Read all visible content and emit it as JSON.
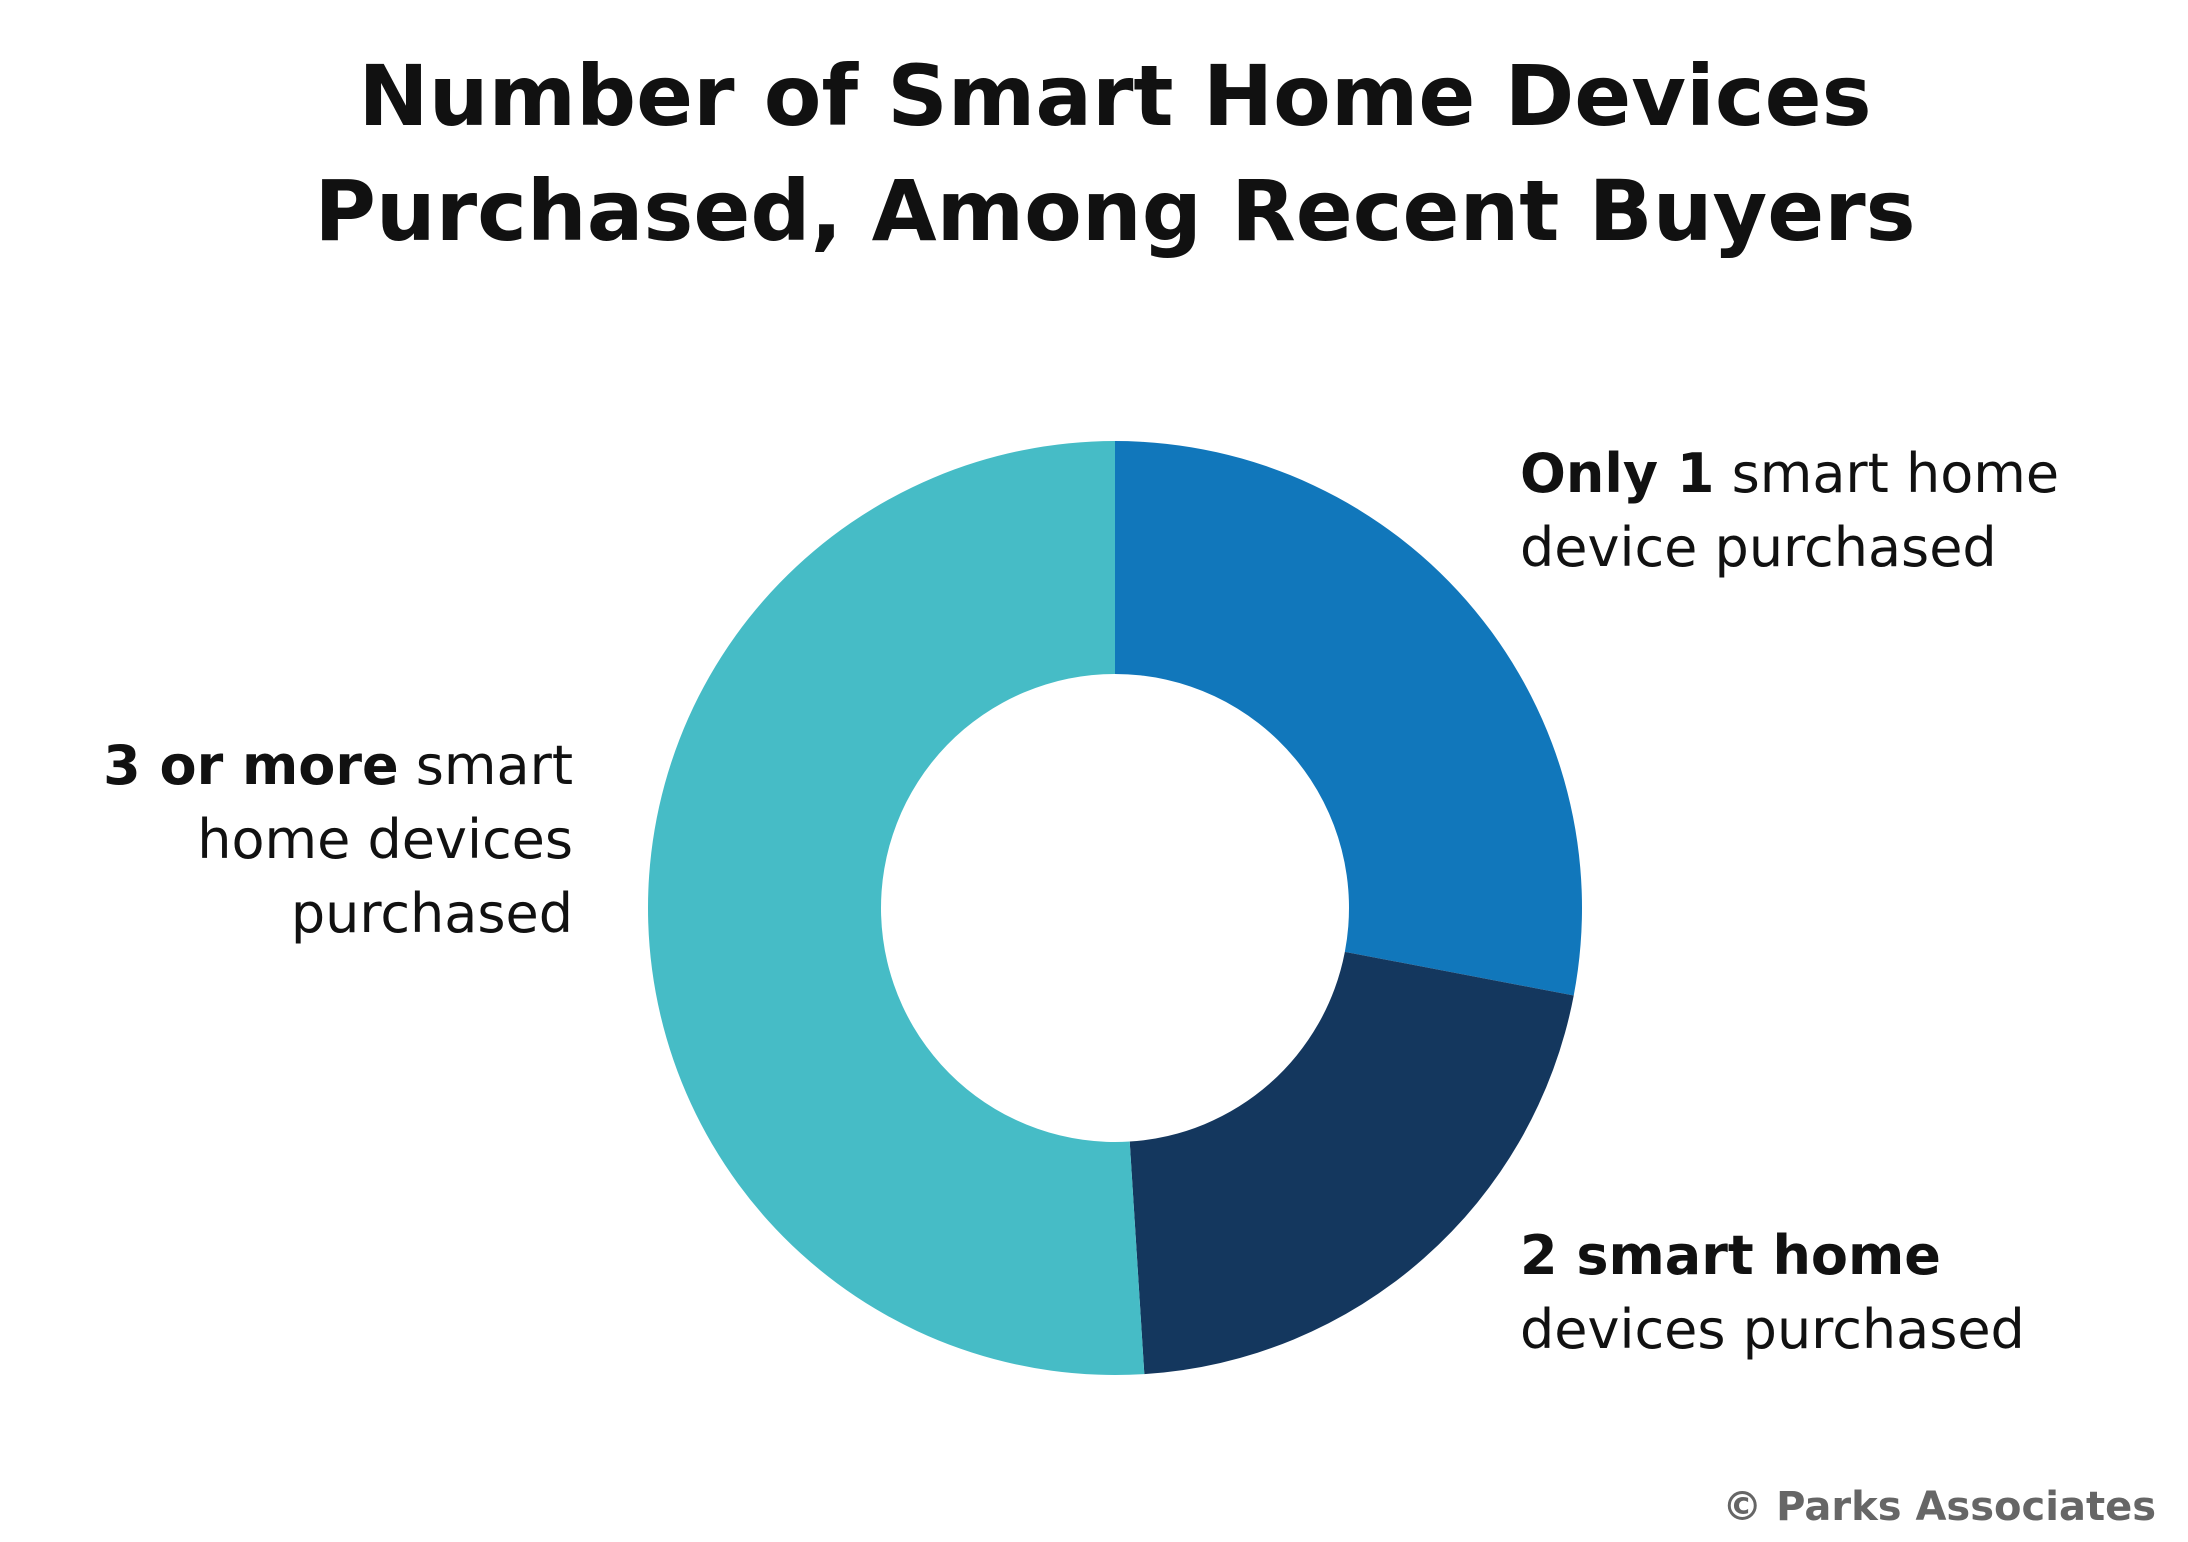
{
  "chart_data": {
    "type": "donut",
    "title_lines": [
      "Number of Smart Home Devices",
      "Purchased, Among Recent Buyers"
    ],
    "label_bold": [
      "Only 1",
      "2 smart home",
      "3 or more"
    ],
    "label_rest": [
      "smart home device purchased",
      "devices purchased",
      "smart home devices purchased"
    ],
    "values": [
      28,
      21,
      51
    ],
    "colors": [
      "#1177bb",
      "#14375e",
      "#46bcc6"
    ],
    "source": "© Parks Associates"
  }
}
